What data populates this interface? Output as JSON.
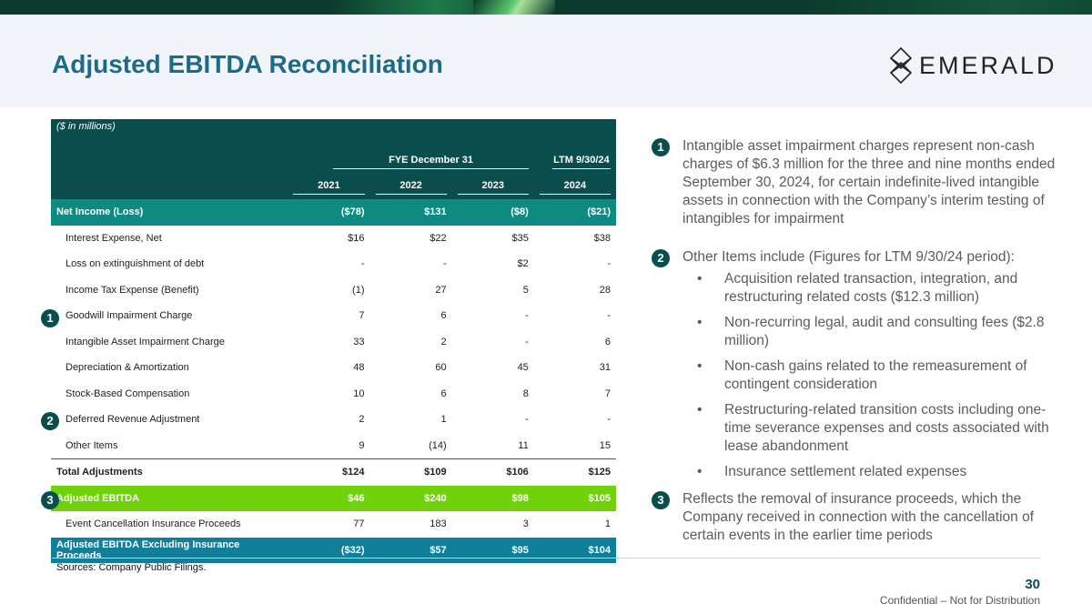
{
  "title": "Adjusted EBITDA Reconciliation",
  "logo": {
    "text": "EMERALD",
    "icon": "emerald-diamond-icon"
  },
  "table": {
    "units": "($ in millions)",
    "group_headers": {
      "fye": "FYE December 31",
      "ltm": "LTM 9/30/24"
    },
    "years": [
      "2021",
      "2022",
      "2023",
      "2024"
    ],
    "rows": [
      {
        "label": "Net Income (Loss)",
        "values": [
          "($78)",
          "$131",
          "($8)",
          "($21)"
        ]
      },
      {
        "label": "Interest Expense, Net",
        "values": [
          "$16",
          "$22",
          "$35",
          "$38"
        ]
      },
      {
        "label": "Loss on extinguishment of debt",
        "values": [
          "-",
          "-",
          "$2",
          "-"
        ]
      },
      {
        "label": "Income Tax Expense (Benefit)",
        "values": [
          "(1)",
          "27",
          "5",
          "28"
        ]
      },
      {
        "label": "Goodwill Impairment Charge",
        "values": [
          "7",
          "6",
          "-",
          "-"
        ]
      },
      {
        "label": "Intangible Asset Impairment Charge",
        "values": [
          "33",
          "2",
          "-",
          "6"
        ]
      },
      {
        "label": "Depreciation & Amortization",
        "values": [
          "48",
          "60",
          "45",
          "31"
        ]
      },
      {
        "label": "Stock-Based Compensation",
        "values": [
          "10",
          "6",
          "8",
          "7"
        ]
      },
      {
        "label": "Deferred Revenue Adjustment",
        "values": [
          "2",
          "1",
          "-",
          "-"
        ]
      },
      {
        "label": "Other Items",
        "values": [
          "9",
          "(14)",
          "11",
          "15"
        ]
      },
      {
        "label": "Total Adjustments",
        "values": [
          "$124",
          "$109",
          "$106",
          "$125"
        ]
      },
      {
        "label": "Adjusted EBITDA",
        "values": [
          "$46",
          "$240",
          "$98",
          "$105"
        ]
      },
      {
        "label": "Event Cancellation Insurance Proceeds",
        "values": [
          "77",
          "183",
          "3",
          "1"
        ]
      },
      {
        "label": "Adjusted EBITDA Excluding Insurance Proceeds",
        "values": [
          "($32)",
          "$57",
          "$95",
          "$104"
        ]
      }
    ]
  },
  "badges": {
    "b1": "1",
    "b2": "2",
    "b3": "3"
  },
  "notes": {
    "n1": "Intangible asset impairment charges represent non-cash charges of $6.3 million for the three and nine months ended September 30, 2024, for certain indefinite-lived intangible assets in connection with the Company’s interim testing of intangibles for impairment",
    "n2": "Other Items include (Figures for LTM 9/30/24 period):",
    "bullet_char": "•",
    "n2_bullets": [
      "Acquisition related transaction, integration, and restructuring related costs ($12.3 million)",
      "Non-recurring legal, audit and consulting fees ($2.8 million)",
      "Non-cash gains related to the remeasurement of contingent consideration",
      "Restructuring-related transition costs including one-time severance expenses and costs associated with lease abandonment",
      "Insurance settlement related expenses"
    ],
    "n3": "Reflects the removal of insurance proceeds, which the Company received in connection with the cancellation of certain events in the earlier time periods"
  },
  "footer": {
    "source": "Sources: Company Public Filings.",
    "page": "30",
    "confidential": "Confidential – Not for Distribution"
  },
  "colors": {
    "title": "#1c6b87",
    "table_header": "#0a4d4d",
    "net_income": "#0f8a80",
    "adj_ebitda": "#6fd20a",
    "adj_ex": "#117f99"
  }
}
